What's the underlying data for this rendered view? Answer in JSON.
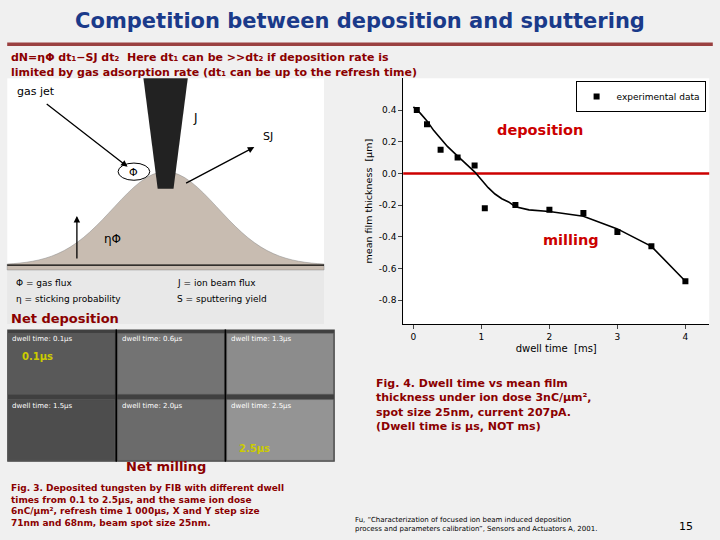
{
  "chart_data": {
    "type": "scatter",
    "title": "Competition between deposition and sputtering",
    "title_color": "#1a3a8a",
    "x_label": "dwell time  [ms]",
    "y_label": "mean film thickness  [µm]",
    "xlim": [
      -0.15,
      4.35
    ],
    "ylim": [
      -0.95,
      0.6
    ],
    "xticks": [
      0,
      1,
      2,
      3,
      4
    ],
    "yticks": [
      -0.8,
      -0.6,
      -0.4,
      -0.2,
      {
        "value": 0.0,
        "label": "0.0"
      },
      0.2,
      0.4
    ],
    "grid": false,
    "legend": "upper right",
    "series": [
      {
        "name": "experimental data",
        "type": "scatter",
        "marker": "square",
        "color": "#000000",
        "x": [
          0.05,
          0.2,
          0.4,
          0.65,
          0.9,
          1.05,
          1.5,
          2.0,
          2.5,
          3.0,
          3.5,
          4.0
        ],
        "values": [
          0.4,
          0.31,
          0.15,
          0.1,
          0.05,
          -0.22,
          -0.2,
          -0.23,
          -0.25,
          -0.37,
          -0.46,
          -0.68
        ]
      },
      {
        "type": "line",
        "line_style": "solid",
        "color": "#000000",
        "x": [
          0.0,
          0.1,
          0.2,
          0.3,
          0.4,
          0.5,
          0.6,
          0.7,
          0.8,
          0.9,
          1.0,
          1.1,
          1.2,
          1.3,
          1.4,
          1.5,
          1.7,
          2.0,
          2.5,
          3.0,
          3.5,
          4.0
        ],
        "values": [
          0.42,
          0.38,
          0.33,
          0.27,
          0.22,
          0.17,
          0.13,
          0.09,
          0.05,
          0.01,
          -0.04,
          -0.09,
          -0.13,
          -0.16,
          -0.18,
          -0.21,
          -0.23,
          -0.24,
          -0.27,
          -0.35,
          -0.46,
          -0.68
        ]
      }
    ],
    "hlines": [
      {
        "value": 0.0,
        "color": "#cc0000"
      }
    ],
    "annotations": [
      {
        "text": "dN=ηΦ dt₁−SJ dt₂  Here dt₁ can be >>dt₂ if deposition rate is",
        "color": "#8b0000"
      },
      {
        "text": "limited by gas adsorption rate (dt₁ can be up to the refresh time)",
        "color": "#8b0000"
      },
      {
        "text": "J",
        "color": "#000000"
      },
      {
        "text": "gas jet",
        "color": "#000000"
      },
      {
        "text": "Φ",
        "color": "#000000"
      },
      {
        "text": "SJ",
        "color": "#000000"
      },
      {
        "text": "ηΦ",
        "color": "#000000"
      },
      {
        "text": "Φ = gas flux",
        "color": "#000000"
      },
      {
        "text": "η = sticking probability",
        "color": "#000000"
      },
      {
        "text": "J = ion beam flux",
        "color": "#000000"
      },
      {
        "text": "S = sputtering yield",
        "color": "#000000"
      },
      {
        "text": "deposition",
        "color": "#cc0000"
      },
      {
        "text": "milling",
        "color": "#cc0000"
      },
      {
        "text": "Net deposition",
        "color": "#8b0000"
      },
      {
        "text": "0.1µs",
        "color": "#cccc00"
      },
      {
        "text": "dwell time: 0.1μs",
        "color": "#ffffff"
      },
      {
        "text": "dwell time: 0.6μs",
        "color": "#ffffff"
      },
      {
        "text": "dwell time: 1.3μs",
        "color": "#ffffff"
      },
      {
        "text": "dwell time: 1.5μs",
        "color": "#ffffff"
      },
      {
        "text": "dwell time: 2.0μs",
        "color": "#ffffff"
      },
      {
        "text": "dwell time: 2.5μs",
        "color": "#ffffff"
      },
      {
        "text": "2.5µs",
        "color": "#cccc00"
      },
      {
        "text": "Net milling",
        "color": "#8b0000"
      },
      {
        "text": "Fig. 4. Dwell time vs mean film\nthickness under ion dose 3nC/µm²,\nspot size 25nm, current 207pA.\n(Dwell time is µs, NOT ms)",
        "color": "#8b0000"
      },
      {
        "text": "Fig. 3. Deposited tungsten by FIB with different dwell\ntimes from 0.1 to 2.5µs, and the same ion dose\n6nC/µm², refresh time 1 000µs, X and Y step size\n71nm and 68nm, beam spot size 25nm.",
        "color": "#8b0000"
      },
      {
        "text": "Fu, “Characterization of focused ion beam induced deposition\nprocess and parameters calibration”, Sensors and Actuators A, 2001.",
        "color": "#000000"
      },
      {
        "text": "15",
        "color": "#000000"
      }
    ]
  }
}
